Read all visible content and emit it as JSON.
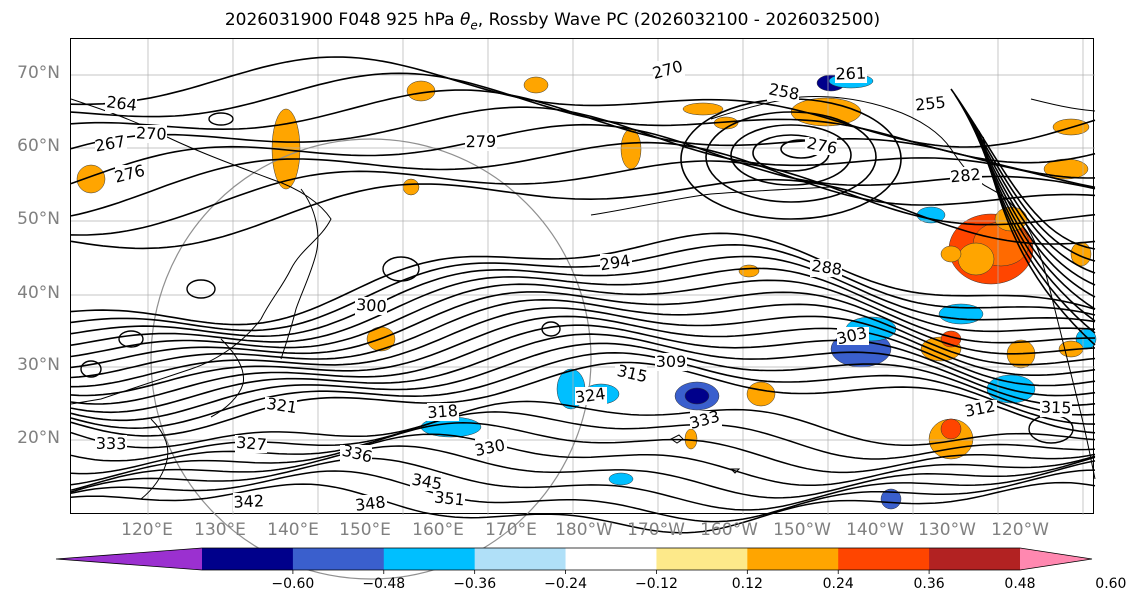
{
  "title_prefix": "2026031900 F048 925 hPa ",
  "title_symbol": "θ",
  "title_subscript": "e",
  "title_suffix": ", Rossby Wave PC (2026032100 - 2026032500)",
  "map": {
    "lat_labels": [
      "70°N",
      "60°N",
      "50°N",
      "40°N",
      "30°N",
      "20°N"
    ],
    "lon_labels": [
      "120°E",
      "130°E",
      "140°E",
      "150°E",
      "160°E",
      "170°E",
      "180°W",
      "170°W",
      "160°W",
      "150°W",
      "140°W",
      "130°W",
      "120°W"
    ],
    "contour_labels": [
      "270",
      "261",
      "258",
      "255",
      "264",
      "267",
      "270",
      "276",
      "279",
      "276",
      "282",
      "288",
      "294",
      "300",
      "303",
      "309",
      "315",
      "318",
      "321",
      "324",
      "327",
      "330",
      "333",
      "336",
      "342",
      "345",
      "348",
      "351",
      "312",
      "315",
      "333"
    ]
  },
  "colorbar": {
    "ticks": [
      "−0.60",
      "−0.48",
      "−0.36",
      "−0.24",
      "−0.12",
      "0.12",
      "0.24",
      "0.36",
      "0.48",
      "0.60"
    ],
    "colors": [
      "#9b30d0",
      "#00008b",
      "#3a5fcd",
      "#00bfff",
      "#b0e0f8",
      "#ffffff",
      "#fde98a",
      "#ffa500",
      "#ff4500",
      "#b22222",
      "#ff88b0"
    ]
  }
}
